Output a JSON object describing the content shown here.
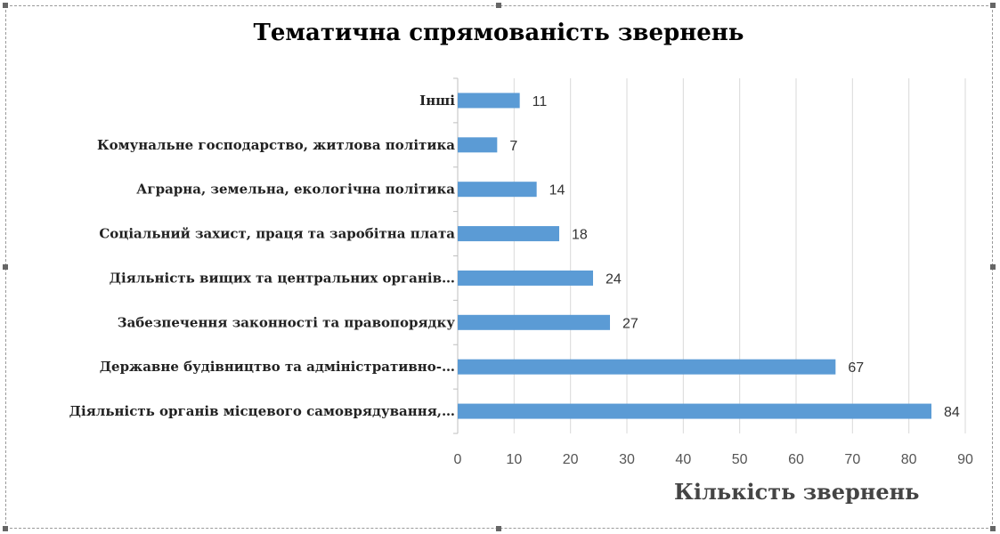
{
  "chart_data": {
    "type": "bar",
    "orientation": "horizontal",
    "title": "Тематична спрямованість звернень",
    "xlabel": "Кількість звернень",
    "ylabel": "",
    "categories": [
      "Інші",
      "Комунальне господарство, житлова політика",
      "Аграрна, земельна, екологічна політика",
      "Соціальний захист, праця та заробітна плата",
      "Діяльність вищих та центральних органів…",
      "Забезпечення законності та правопорядку",
      "Державне будівництво та адміністративно-…",
      "Діяльність органів місцевого самоврядування,…"
    ],
    "values": [
      11,
      7,
      14,
      18,
      24,
      27,
      67,
      84
    ],
    "xlim": [
      0,
      90
    ],
    "xticks": [
      0,
      10,
      20,
      30,
      40,
      50,
      60,
      70,
      80,
      90
    ],
    "grid": "vertical",
    "legend": "none",
    "bar_color": "#5b9bd5"
  }
}
